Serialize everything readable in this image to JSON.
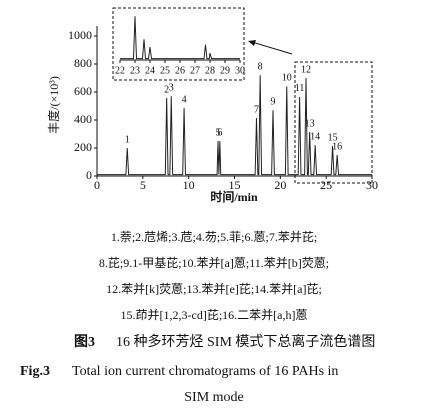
{
  "chart_data": [
    {
      "type": "line",
      "y_label": "丰度/(×10³)",
      "x_label": "时间/min",
      "xlim": [
        0,
        30
      ],
      "xticks": [
        0,
        5,
        10,
        15,
        20,
        25,
        30
      ],
      "ylim": [
        0,
        1000
      ],
      "yticks": [
        0,
        200,
        400,
        600,
        800,
        1000
      ],
      "series": [
        {
          "color": "#222222",
          "x": [
            0,
            3.15,
            3.3,
            3.45,
            7.45,
            7.6,
            7.75,
            7.95,
            8.1,
            8.25,
            9.35,
            9.5,
            9.65,
            13.1,
            13.2,
            13.3,
            13.4,
            13.5,
            17.25,
            17.4,
            17.55,
            17.65,
            17.8,
            17.95,
            19.05,
            19.2,
            19.35,
            20.55,
            20.7,
            20.85,
            21.95,
            22.1,
            22.25,
            22.65,
            22.8,
            22.95,
            23.05,
            23.2,
            23.35,
            23.65,
            23.8,
            23.95,
            25.55,
            25.7,
            25.85,
            26.05,
            26.2,
            26.35,
            30
          ],
          "values": [
            10,
            10,
            200,
            10,
            10,
            557,
            10,
            10,
            570,
            10,
            10,
            486,
            10,
            10,
            250,
            10,
            250,
            10,
            10,
            414,
            10,
            10,
            720,
            10,
            10,
            470,
            10,
            10,
            640,
            10,
            10,
            565,
            10,
            10,
            700,
            10,
            10,
            314,
            10,
            10,
            220,
            10,
            10,
            214,
            10,
            10,
            150,
            10,
            10
          ]
        }
      ],
      "annotations": [
        {
          "text": "1",
          "x": 3.3,
          "y": 200
        },
        {
          "text": "2",
          "x": 7.6,
          "y": 557
        },
        {
          "text": "3",
          "x": 8.1,
          "y": 570
        },
        {
          "text": "4",
          "x": 9.5,
          "y": 486
        },
        {
          "text": "5",
          "x": 13.2,
          "y": 250
        },
        {
          "text": "6",
          "x": 13.4,
          "y": 250
        },
        {
          "text": "7",
          "x": 17.4,
          "y": 414
        },
        {
          "text": "8",
          "x": 17.8,
          "y": 720
        },
        {
          "text": "9",
          "x": 19.2,
          "y": 470
        },
        {
          "text": "10",
          "x": 20.7,
          "y": 640
        },
        {
          "text": "11",
          "x": 22.1,
          "y": 565
        },
        {
          "text": "12",
          "x": 22.8,
          "y": 700
        },
        {
          "text": "13",
          "x": 23.2,
          "y": 314
        },
        {
          "text": "14",
          "x": 23.8,
          "y": 220
        },
        {
          "text": "15",
          "x": 25.7,
          "y": 214
        },
        {
          "text": "16",
          "x": 26.2,
          "y": 150
        }
      ]
    },
    {
      "type": "line",
      "xlim": [
        22,
        30
      ],
      "xticks": [
        22,
        23,
        24,
        25,
        26,
        27,
        28,
        29,
        30
      ],
      "ylim": [
        0,
        100
      ],
      "series": [
        {
          "color": "#222222",
          "x": [
            22,
            22.9,
            23,
            23.1,
            23.5,
            23.6,
            23.7,
            23.9,
            24,
            24.1,
            27.6,
            27.7,
            27.8,
            27.95,
            28,
            28.1,
            30
          ],
          "values": [
            3,
            3,
            95,
            3,
            3,
            45,
            3,
            3,
            28,
            3,
            3,
            33,
            3,
            3,
            15,
            3,
            3
          ]
        }
      ]
    }
  ],
  "legend_lines": [
    "1.萘;2.苊烯;3.苊;4.芴;5.菲;6.蒽;7.苯并芘;",
    "8.芘;9.1-甲基芘;10.苯并[a]蒽;11.苯并[b]荧蒽;",
    "12.苯并[k]荧蒽;13.苯并[e]芘;14.苯并[a]芘;",
    "15.茚并[1,2,3-cd]芘;16.二苯并[a,h]蒽"
  ],
  "caption_cn": {
    "label": "图3",
    "text": "16 种多环芳烃 SIM 模式下总离子流色谱图"
  },
  "caption_en": {
    "label": "Fig.3",
    "text": "Total ion current chromatograms of 16 PAHs in",
    "text2": "SIM mode"
  }
}
